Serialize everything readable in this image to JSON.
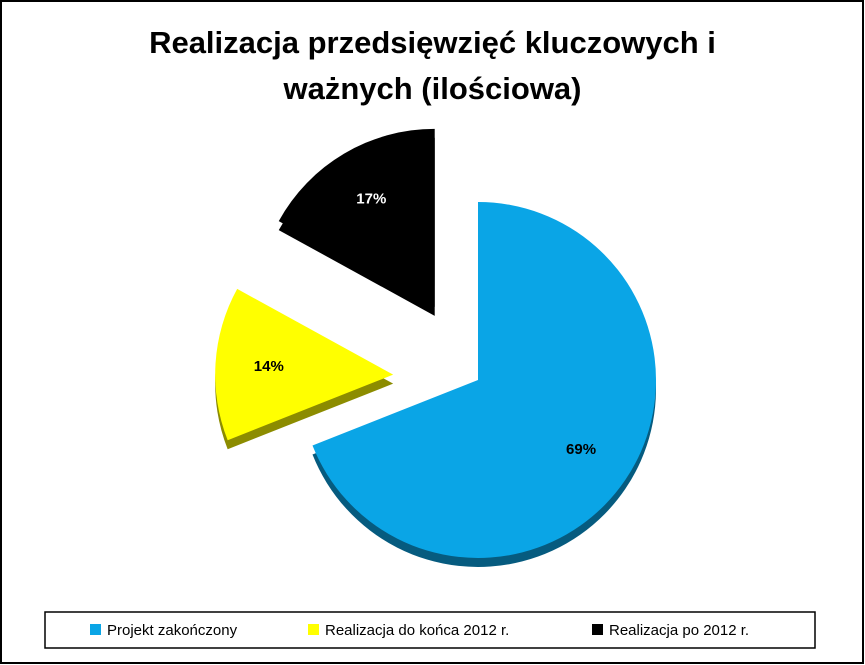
{
  "chart_data": {
    "type": "pie",
    "title": "Realizacja przedsięwzięć kluczowych i ważnych (ilościowa)",
    "categories": [
      "Projekt zakończony",
      "Realizacja do końca 2012 r.",
      "Realizacja po 2012 r."
    ],
    "values": [
      69,
      14,
      17
    ],
    "value_labels": [
      "69%",
      "14%",
      "17%"
    ],
    "colors": [
      "#0aa5e6",
      "#ffff00",
      "#000000"
    ],
    "exploded": [
      false,
      true,
      true
    ],
    "legend": "bottom"
  }
}
